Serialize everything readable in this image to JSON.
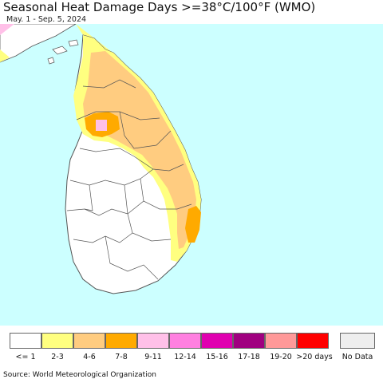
{
  "header": {
    "title": "Seasonal Heat Damage Days >=38°C/100°F (WMO)",
    "date_range": "May. 1 - Sep. 5, 2024"
  },
  "colors": {
    "ocean": "#ccffff",
    "land_zero": "#ffffff",
    "border": "#555555"
  },
  "legend": {
    "items": [
      {
        "label": "<= 1",
        "color": "#ffffff"
      },
      {
        "label": "2-3",
        "color": "#ffff80"
      },
      {
        "label": "4-6",
        "color": "#ffcc80"
      },
      {
        "label": "7-8",
        "color": "#ffaa00"
      },
      {
        "label": "9-11",
        "color": "#ffc0e8"
      },
      {
        "label": "12-14",
        "color": "#ff80e0"
      },
      {
        "label": "15-16",
        "color": "#e000b0"
      },
      {
        "label": "17-18",
        "color": "#a00080"
      },
      {
        "label": "19-20",
        "color": "#ff9999"
      },
      {
        "label": ">20 days",
        "color": "#ff0000"
      }
    ],
    "no_data": {
      "label": "No Data",
      "color": "#eeeeee"
    }
  },
  "footer": {
    "source": "Source: World Meteorological Organization"
  }
}
